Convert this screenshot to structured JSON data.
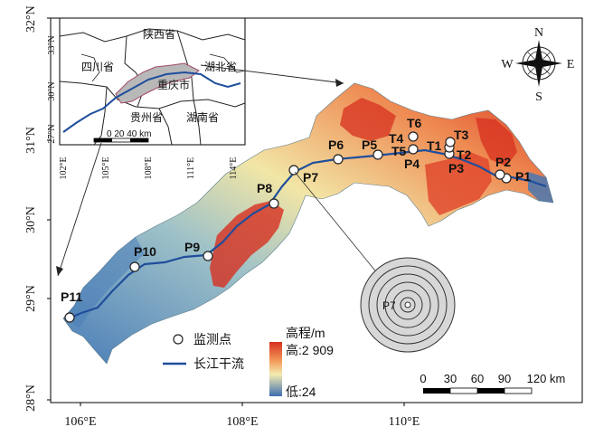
{
  "axes": {
    "left_lat_labels": [
      "32°N",
      "31°N",
      "30°N",
      "29°N",
      "28°N"
    ],
    "bottom_lon_labels": [
      "106°E",
      "108°E",
      "110°E"
    ]
  },
  "inset": {
    "provinces": [
      "陕西省",
      "四川省",
      "湖北省",
      "重庆市",
      "贵州省",
      "湖南省"
    ],
    "lat_labels": [
      "33°N",
      "30°N",
      "27°N"
    ],
    "lon_labels": [
      "102°E",
      "105°E",
      "108°E",
      "111°E",
      "114°E"
    ],
    "scale_label": "0  20 40 km"
  },
  "compass": {
    "n": "N",
    "s": "S",
    "e": "E",
    "w": "W"
  },
  "points": [
    "P1",
    "P2",
    "P3",
    "P4",
    "P5",
    "P6",
    "P7",
    "P8",
    "P9",
    "P10",
    "P11",
    "T1",
    "T2",
    "T3",
    "T4",
    "T5",
    "T6"
  ],
  "legend": {
    "monitoring_point": "监测点",
    "river": "长江干流",
    "elevation_title": "高程/m",
    "high_label": "高:2 909",
    "low_label": "低:24"
  },
  "scale_bar": {
    "labels": [
      "0",
      "30",
      "60",
      "90",
      "120 km"
    ]
  },
  "buffer_label": "P7",
  "colors": {
    "low": "#4a7db8",
    "mid": "#f2e6a6",
    "high": "#d7301f",
    "river": "#1f4e9c"
  }
}
